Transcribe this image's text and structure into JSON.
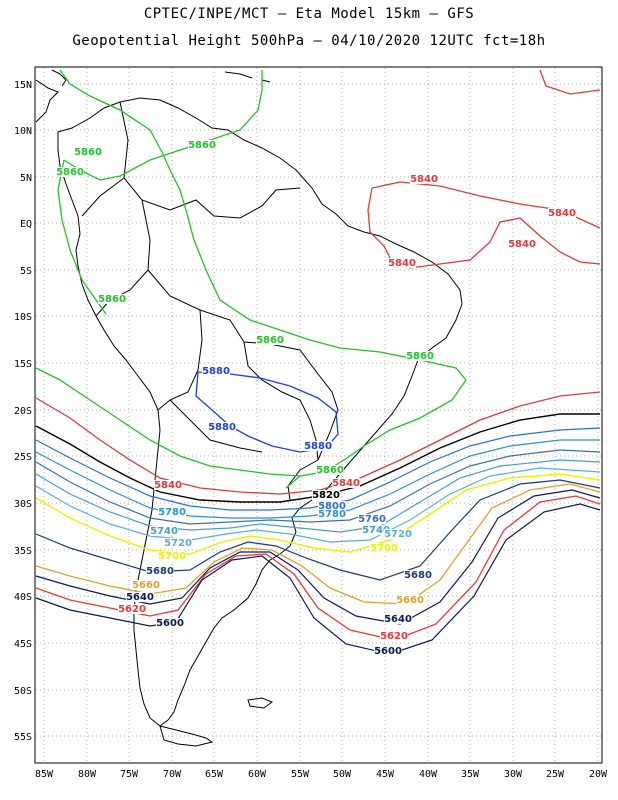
{
  "header": {
    "title_line1": "CPTEC/INPE/MCT –  Eta Model 15km – GFS",
    "title_line2": "Geopotential Height 500hPa – 04/10/2020 12UTC fct=18h"
  },
  "axes": {
    "lat_labels": [
      "15N",
      "10N",
      "5N",
      "EQ",
      "5S",
      "10S",
      "15S",
      "20S",
      "25S",
      "30S",
      "35S",
      "40S",
      "45S",
      "50S",
      "55S"
    ],
    "lon_labels": [
      "85W",
      "80W",
      "75W",
      "70W",
      "65W",
      "60W",
      "55W",
      "50W",
      "45W",
      "40W",
      "35W",
      "30W",
      "25W",
      "20W"
    ]
  },
  "colors": {
    "c5880": "#1f3fe0",
    "c5860": "#22c22a",
    "c5840": "#e03a3a",
    "c5820": "#000000",
    "c5800": "#2b6fd6",
    "c5780": "#2e8fd6",
    "c5760": "#3f6fa8",
    "c5740": "#45a0c8",
    "c5720": "#5ab0d0",
    "c5700": "#f0f000",
    "c5680": "#1a3a7a",
    "c5660": "#e0a030",
    "c5640": "#0a1a60",
    "c5620": "#e83838",
    "c5600": "#0a1a50"
  },
  "contour_labels": [
    {
      "text": "5860",
      "color": "c5860"
    },
    {
      "text": "5860",
      "color": "c5860"
    },
    {
      "text": "5860",
      "color": "c5860"
    },
    {
      "text": "5860",
      "color": "c5860"
    },
    {
      "text": "5860",
      "color": "c5860"
    },
    {
      "text": "5860",
      "color": "c5860"
    },
    {
      "text": "5860",
      "color": "c5860"
    },
    {
      "text": "5840",
      "color": "c5840"
    },
    {
      "text": "5840",
      "color": "c5840"
    },
    {
      "text": "5840",
      "color": "c5840"
    },
    {
      "text": "5840",
      "color": "c5840"
    },
    {
      "text": "5840",
      "color": "c5840"
    },
    {
      "text": "5840",
      "color": "c5840"
    },
    {
      "text": "5880",
      "color": "c5880"
    },
    {
      "text": "5880",
      "color": "c5880"
    },
    {
      "text": "5880",
      "color": "c5880"
    },
    {
      "text": "5820",
      "color": "c5820"
    },
    {
      "text": "5800",
      "color": "c5800"
    },
    {
      "text": "5780",
      "color": "c5780"
    },
    {
      "text": "5780",
      "color": "c5780"
    },
    {
      "text": "5760",
      "color": "c5760"
    },
    {
      "text": "5740",
      "color": "c5740"
    },
    {
      "text": "5740",
      "color": "c5740"
    },
    {
      "text": "5720",
      "color": "c5720"
    },
    {
      "text": "5720",
      "color": "c5720"
    },
    {
      "text": "5700",
      "color": "c5700"
    },
    {
      "text": "5700",
      "color": "c5700"
    },
    {
      "text": "5680",
      "color": "c5680"
    },
    {
      "text": "5680",
      "color": "c5680"
    },
    {
      "text": "5660",
      "color": "c5660"
    },
    {
      "text": "5660",
      "color": "c5660"
    },
    {
      "text": "5640",
      "color": "c5640"
    },
    {
      "text": "5640",
      "color": "c5640"
    },
    {
      "text": "5620",
      "color": "c5620"
    },
    {
      "text": "5620",
      "color": "c5620"
    },
    {
      "text": "5600",
      "color": "c5600"
    },
    {
      "text": "5600",
      "color": "c5600"
    }
  ]
}
